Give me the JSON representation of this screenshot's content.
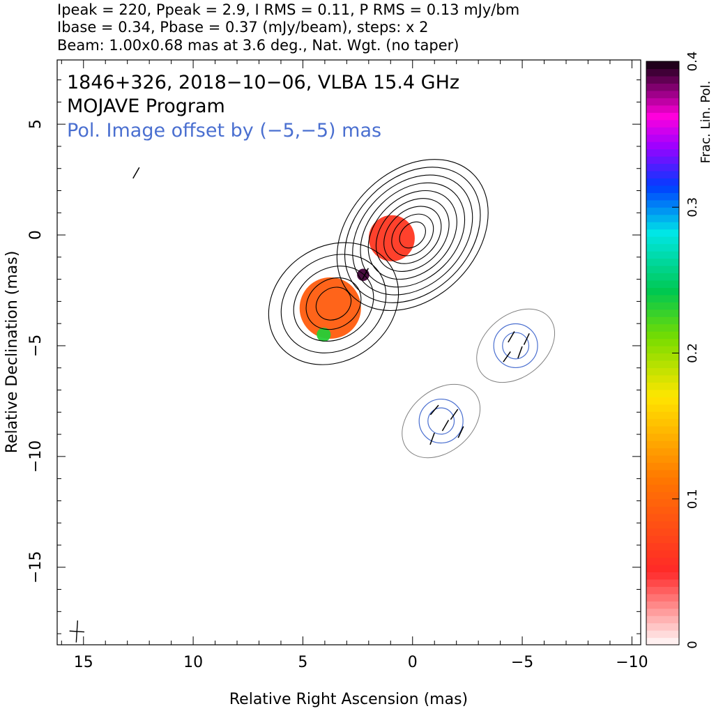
{
  "header": {
    "line1": "Ipeak = 220, Ppeak = 2.9, I RMS = 0.11, P RMS = 0.13 mJy/bm",
    "line2": "Ibase = 0.34, Pbase = 0.37 (mJy/beam), steps: x 2",
    "line3": "Beam: 1.00x0.68 mas at 3.6 deg., Nat. Wgt. (no taper)"
  },
  "annotations": {
    "source": "1846+326, 2018−10−06, VLBA 15.4 GHz",
    "program": "MOJAVE Program",
    "offset": "Pol. Image offset by (−5,−5) mas",
    "offset_color": "#4a6fd0"
  },
  "chart_data": {
    "type": "contour",
    "xlabel": "Relative Right Ascension (mas)",
    "ylabel": "Relative Declination (mas)",
    "colorbar_label": "Frac. Lin. Pol.",
    "xlim": [
      16.2,
      -10.4
    ],
    "ylim": [
      -18.5,
      7.9
    ],
    "x_ticks": [
      {
        "value": 15,
        "label": "15"
      },
      {
        "value": 10,
        "label": "10"
      },
      {
        "value": 5,
        "label": "5"
      },
      {
        "value": 0,
        "label": "0"
      },
      {
        "value": -5,
        "label": "−5"
      },
      {
        "value": -10,
        "label": "−10"
      }
    ],
    "y_ticks": [
      {
        "value": 5,
        "label": "5"
      },
      {
        "value": 0,
        "label": "0"
      },
      {
        "value": -5,
        "label": "−5"
      },
      {
        "value": -10,
        "label": "−10"
      },
      {
        "value": -15,
        "label": "−15"
      }
    ],
    "colorbar_range": [
      0,
      0.4
    ],
    "colorbar_ticks": [
      {
        "value": 0,
        "label": "0"
      },
      {
        "value": 0.1,
        "label": "0.1"
      },
      {
        "value": 0.2,
        "label": "0.2"
      },
      {
        "value": 0.3,
        "label": "0.3"
      },
      {
        "value": 0.4,
        "label": "0.4"
      }
    ],
    "colors": {
      "total_intensity_contours": "#000000",
      "pol_contours": "#4a6fd0",
      "offset_pol_base": "#808080",
      "evpa_ticks": "#000000"
    },
    "beam": {
      "x": 15.3,
      "y": -17.9,
      "major_mas": 1.0,
      "minor_mas": 0.68,
      "pa_deg": 3.6
    },
    "total_intensity_components": [
      {
        "x": 0.0,
        "y": 0.0,
        "levels": [
          0.5,
          0.8,
          1.1,
          1.4,
          1.7,
          2.0,
          2.3,
          2.6,
          2.9
        ],
        "elong": 1.35,
        "pa": 45
      },
      {
        "x": 3.6,
        "y": -3.1,
        "levels": [
          0.7,
          1.1,
          1.6,
          2.1,
          2.6
        ],
        "elong": 1.2,
        "pa": 35
      }
    ],
    "frac_pol_blobs": [
      {
        "x": 0.95,
        "y": -0.15,
        "r": 1.05,
        "frac": 0.06
      },
      {
        "x": 3.75,
        "y": -3.3,
        "r": 1.4,
        "frac": 0.09
      },
      {
        "x": 4.05,
        "y": -4.5,
        "r": 0.32,
        "frac": 0.23
      },
      {
        "x": 2.25,
        "y": -1.8,
        "r": 0.28,
        "frac": 0.39
      }
    ],
    "offset_pol_components": [
      {
        "x": -4.7,
        "y": -5.0,
        "r": 1.0
      },
      {
        "x": -1.3,
        "y": -8.4,
        "r": 1.0
      }
    ],
    "evpa_vectors": [
      {
        "x": -4.5,
        "y": -4.6,
        "angle": 60
      },
      {
        "x": -4.9,
        "y": -5.3,
        "angle": 70
      },
      {
        "x": -4.3,
        "y": -5.5,
        "angle": 55
      },
      {
        "x": -5.2,
        "y": -4.7,
        "angle": 65
      },
      {
        "x": -1.0,
        "y": -7.9,
        "angle": 50
      },
      {
        "x": -1.5,
        "y": -8.6,
        "angle": 60
      },
      {
        "x": -0.9,
        "y": -9.2,
        "angle": 70
      },
      {
        "x": -1.9,
        "y": -8.1,
        "angle": 55
      },
      {
        "x": -2.2,
        "y": -8.9,
        "angle": 65
      },
      {
        "x": 12.6,
        "y": 2.8,
        "angle": 60
      },
      {
        "x": 2.15,
        "y": -1.75,
        "angle": 62
      }
    ]
  }
}
